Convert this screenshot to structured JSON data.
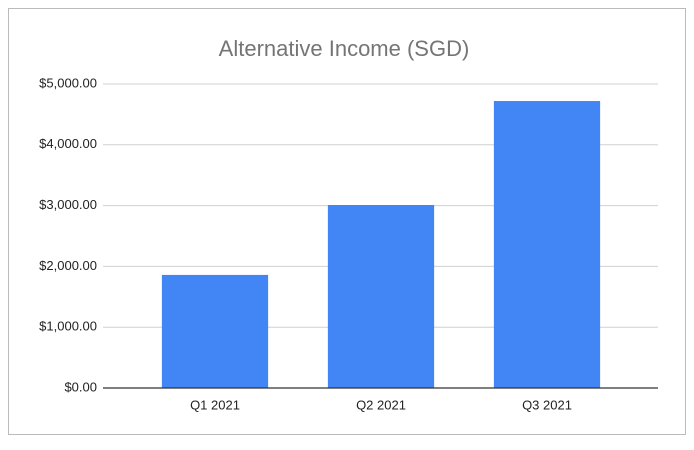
{
  "chart_data": {
    "type": "bar",
    "title": "Alternative Income (SGD)",
    "categories": [
      "Q1 2021",
      "Q2 2021",
      "Q3 2021"
    ],
    "values": [
      1860,
      3010,
      4720
    ],
    "color": "#4285f4",
    "ylim": [
      0,
      5000
    ],
    "yticks": [
      {
        "value": 0,
        "label": "$0.00"
      },
      {
        "value": 1000,
        "label": "$1,000.00"
      },
      {
        "value": 2000,
        "label": "$2,000.00"
      },
      {
        "value": 3000,
        "label": "$3,000.00"
      },
      {
        "value": 4000,
        "label": "$4,000.00"
      },
      {
        "value": 5000,
        "label": "$5,000.00"
      }
    ],
    "grid": true
  }
}
